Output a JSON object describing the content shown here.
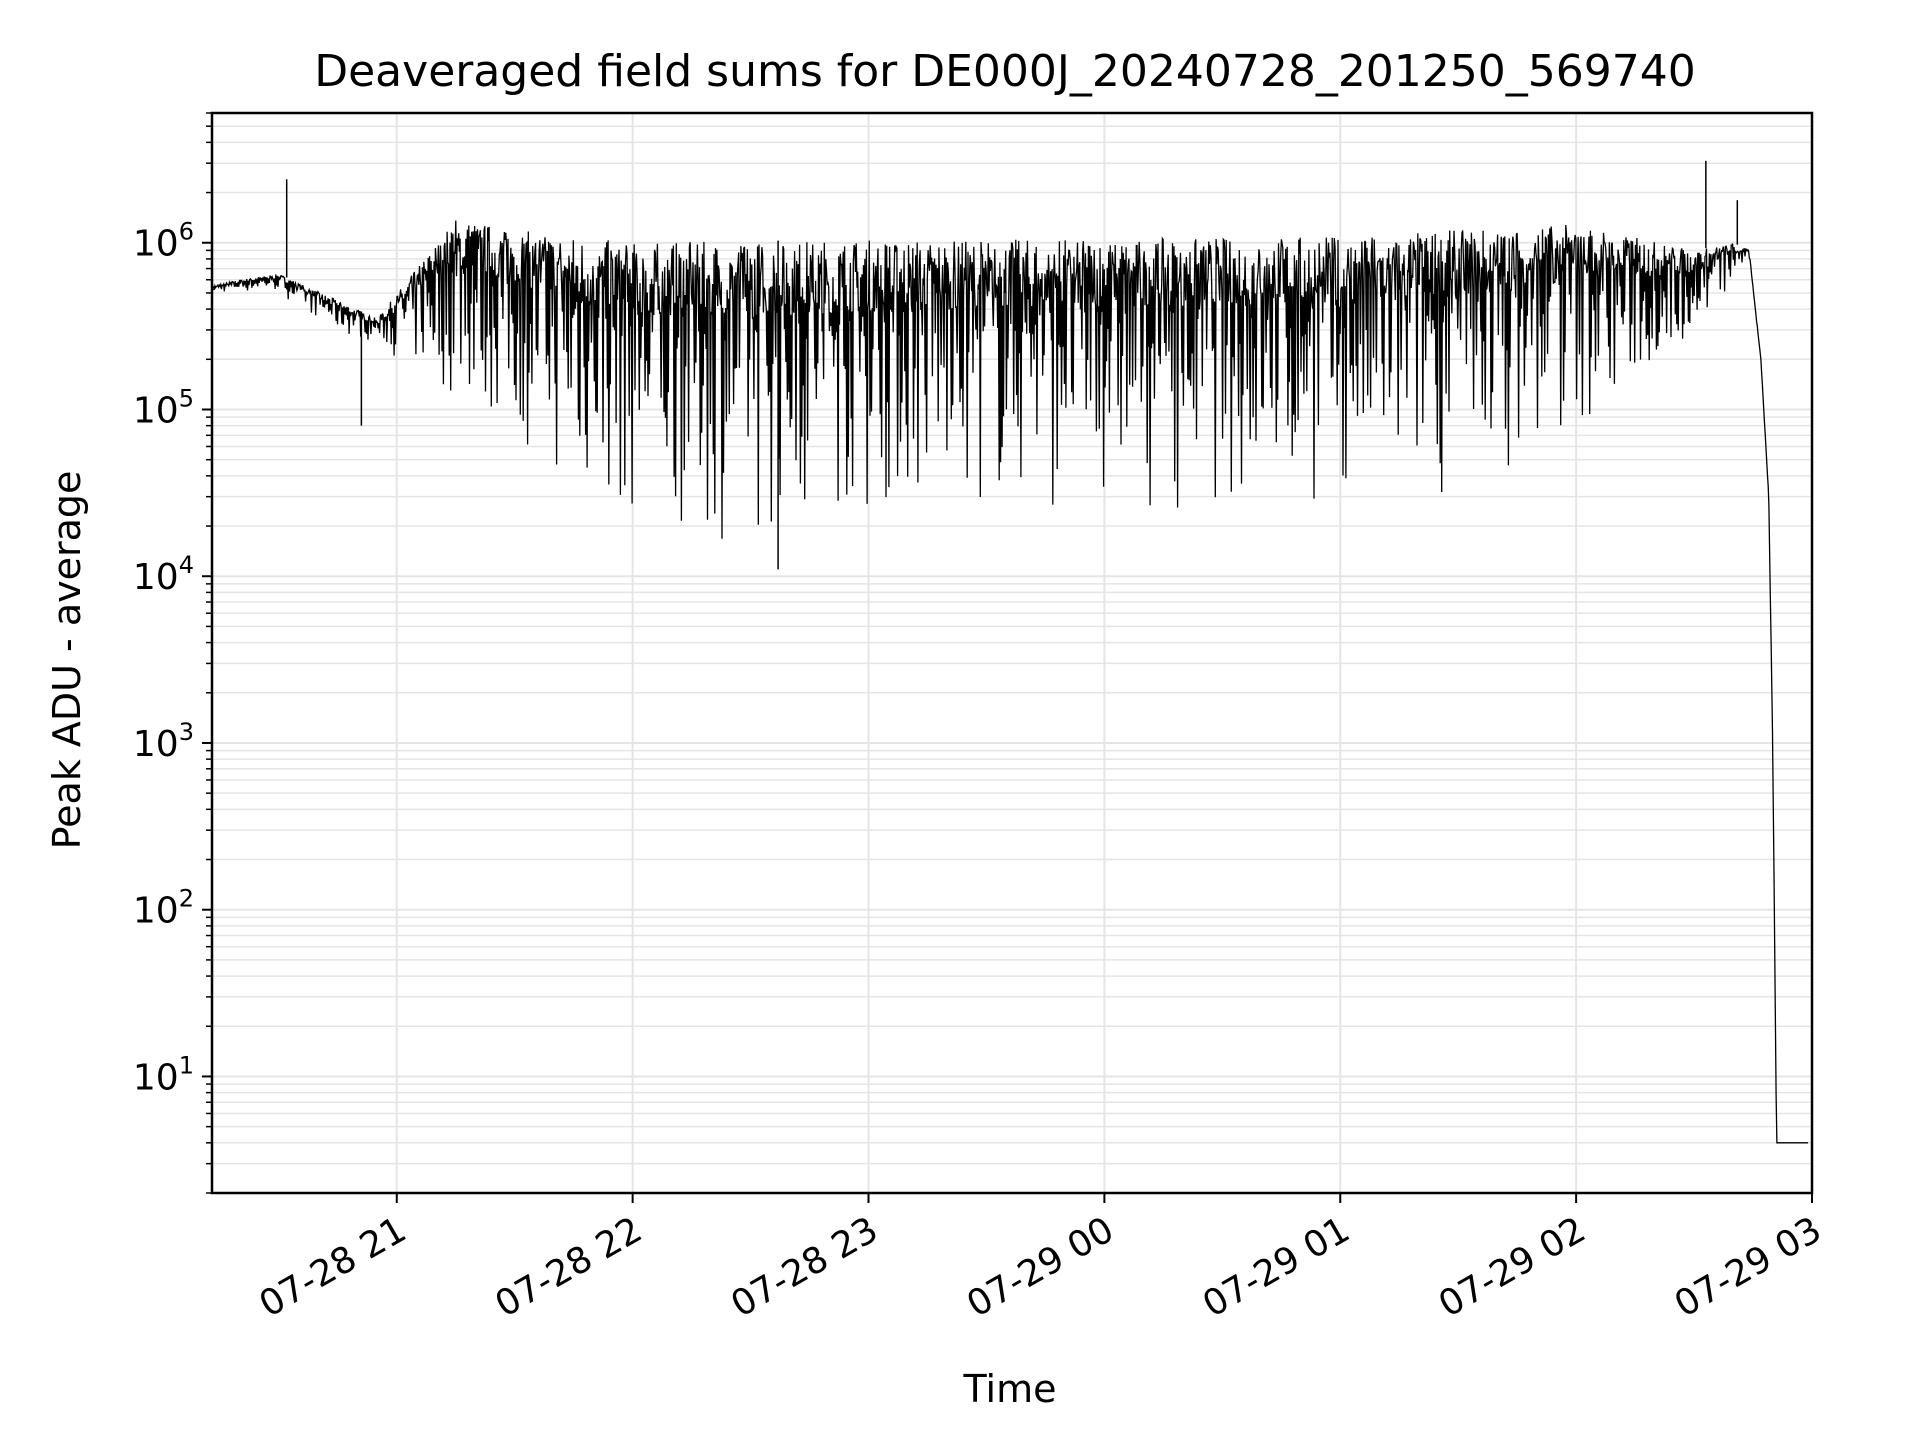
{
  "chart_data": {
    "type": "line",
    "title": "Deaveraged field sums for DE000J_20240728_201250_569740",
    "xlabel": "Time",
    "ylabel": "Peak ADU - average",
    "y_scale": "log",
    "ylim": [
      2,
      6000000
    ],
    "xlim": [
      "2024-07-28T20:13:00",
      "2024-07-29T03:00:00"
    ],
    "grid": true,
    "line_color": "#000000",
    "grid_color": "#e5e5e5",
    "x_ticks": [
      "2024-07-28T21:00:00",
      "2024-07-28T22:00:00",
      "2024-07-28T23:00:00",
      "2024-07-29T00:00:00",
      "2024-07-29T01:00:00",
      "2024-07-29T02:00:00",
      "2024-07-29T03:00:00"
    ],
    "x_tick_labels": [
      "07-28 21",
      "07-28 22",
      "07-28 23",
      "07-29 00",
      "07-29 01",
      "07-29 02",
      "07-29 03"
    ],
    "y_ticks": [
      10,
      100,
      1000,
      10000,
      100000,
      1000000
    ],
    "y_tick_labels": [
      {
        "base": "10",
        "exp": "1"
      },
      {
        "base": "10",
        "exp": "2"
      },
      {
        "base": "10",
        "exp": "3"
      },
      {
        "base": "10",
        "exp": "4"
      },
      {
        "base": "10",
        "exp": "5"
      },
      {
        "base": "10",
        "exp": "6"
      }
    ],
    "series": [
      {
        "upper_envelope": {
          "x": [
            "2024-07-28T20:13:00",
            "2024-07-28T20:20:00",
            "2024-07-28T20:30:00",
            "2024-07-28T20:45:00",
            "2024-07-28T20:55:00",
            "2024-07-28T21:15:00",
            "2024-07-28T21:30:00",
            "2024-07-28T22:00:00",
            "2024-07-28T23:00:00",
            "2024-07-29T00:00:00",
            "2024-07-29T01:00:00",
            "2024-07-29T02:00:00",
            "2024-07-29T02:30:00",
            "2024-07-29T02:40:00",
            "2024-07-29T02:44:00",
            "2024-07-29T02:47:00",
            "2024-07-29T02:49:00",
            "2024-07-29T02:50:00",
            "2024-07-29T02:51:00",
            "2024-07-29T03:00:00"
          ],
          "y": [
            550000,
            600000,
            650000,
            450000,
            350000,
            1400000,
            1200000,
            1000000,
            1050000,
            1050000,
            1100000,
            1300000,
            900000,
            1000000,
            900000,
            200000,
            30000,
            1000,
            4,
            4
          ]
        },
        "lower_envelope": {
          "x": [
            "2024-07-28T20:13:00",
            "2024-07-28T20:30:00",
            "2024-07-28T20:45:00",
            "2024-07-28T20:55:00",
            "2024-07-28T21:10:00",
            "2024-07-28T21:30:00",
            "2024-07-28T21:45:00",
            "2024-07-28T22:00:00",
            "2024-07-28T22:30:00",
            "2024-07-28T23:00:00",
            "2024-07-29T00:00:00",
            "2024-07-29T01:00:00",
            "2024-07-29T01:30:00",
            "2024-07-29T02:00:00",
            "2024-07-29T02:20:00",
            "2024-07-29T02:35:00",
            "2024-07-29T02:44:00",
            "2024-07-29T02:47:00",
            "2024-07-29T02:49:00",
            "2024-07-29T02:50:00",
            "2024-07-29T02:51:00",
            "2024-07-29T03:00:00"
          ],
          "y": [
            500000,
            500000,
            280000,
            250000,
            120000,
            60000,
            25000,
            18000,
            15000,
            20000,
            25000,
            22000,
            30000,
            60000,
            150000,
            350000,
            800000,
            200000,
            30000,
            1000,
            4,
            4
          ]
        },
        "spikes": [
          {
            "x": "2024-07-28T20:32:00",
            "y": 2400000
          },
          {
            "x": "2024-07-28T20:51:00",
            "y": 80000
          },
          {
            "x": "2024-07-28T22:37:00",
            "y": 11000
          },
          {
            "x": "2024-07-29T02:33:00",
            "y": 3100000
          },
          {
            "x": "2024-07-29T02:41:00",
            "y": 1800000
          }
        ]
      }
    ]
  }
}
